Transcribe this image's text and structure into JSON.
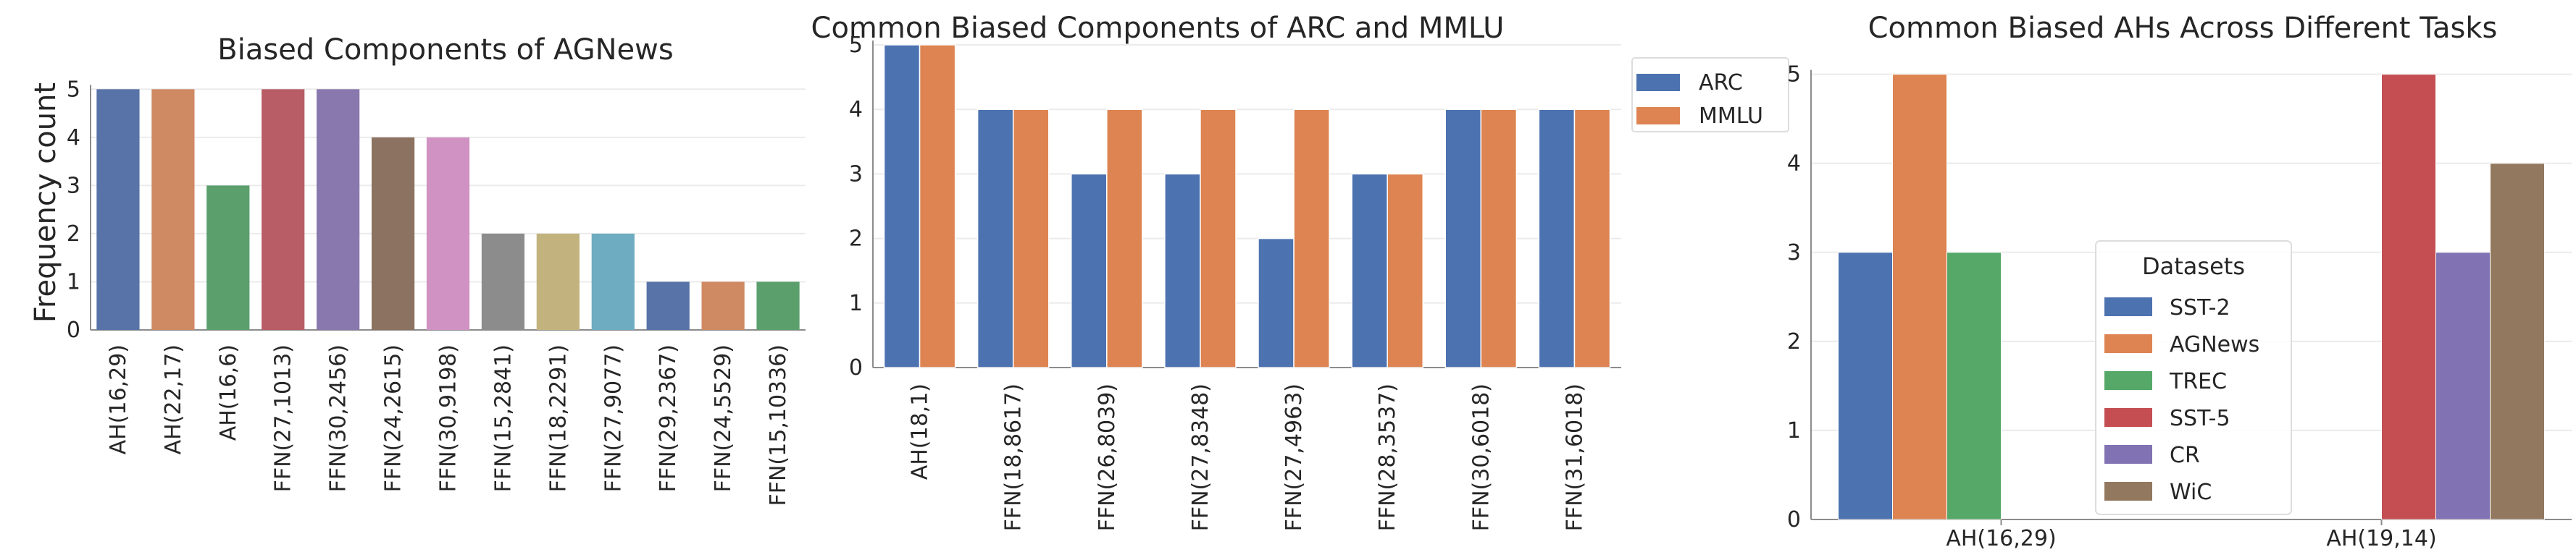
{
  "chart_data": [
    {
      "type": "bar",
      "title": "Biased Components of AGNews",
      "xlabel": "",
      "ylabel": "Frequency count",
      "ylim": [
        0,
        5.2
      ],
      "yticks": [
        0,
        1,
        2,
        3,
        4,
        5
      ],
      "categories": [
        "AH(16,29)",
        "AH(22,17)",
        "AH(16,6)",
        "FFN(27,1013)",
        "FFN(30,2456)",
        "FFN(24,2615)",
        "FFN(30,9198)",
        "FFN(15,2841)",
        "FFN(18,2291)",
        "FFN(27,9077)",
        "FFN(29,2367)",
        "FFN(24,5529)",
        "FFN(15,10336)"
      ],
      "values": [
        5,
        5,
        3,
        5,
        5,
        4,
        4,
        2,
        2,
        2,
        1,
        1,
        1
      ],
      "colors": [
        "#5873a8",
        "#cf8963",
        "#5b9f6d",
        "#b85c65",
        "#8878ad",
        "#8c7261",
        "#d092c2",
        "#8c8c8c",
        "#c2b37e",
        "#6eacc2",
        "#5873a8",
        "#cf8963",
        "#5b9f6d"
      ],
      "grid": true
    },
    {
      "type": "bar",
      "title": "Common Biased Components of ARC and MMLU",
      "xlabel": "",
      "ylabel": "",
      "ylim": [
        0,
        5
      ],
      "yticks": [
        0,
        1,
        2,
        3,
        4,
        5
      ],
      "categories": [
        "AH(18,1)",
        "FFN(18,8617)",
        "FFN(26,8039)",
        "FFN(27,8348)",
        "FFN(27,4963)",
        "FFN(28,3537)",
        "FFN(30,6018)",
        "FFN(31,6018)"
      ],
      "series": [
        {
          "name": "ARC",
          "values": [
            5,
            4,
            3,
            3,
            2,
            3,
            4,
            4
          ],
          "color": "#4c72b0"
        },
        {
          "name": "MMLU",
          "values": [
            5,
            4,
            4,
            4,
            4,
            3,
            4,
            4
          ],
          "color": "#dd8452"
        }
      ],
      "legend": "outside-top-right",
      "grid": true
    },
    {
      "type": "bar",
      "title": "Common Biased AHs Across Different Tasks",
      "xlabel": "",
      "ylabel": "",
      "ylim": [
        0,
        5.2
      ],
      "yticks": [
        0,
        1,
        2,
        3,
        4,
        5
      ],
      "categories": [
        "AH(16,29)",
        "AH(19,14)"
      ],
      "legend_title": "Datasets",
      "legend": "center",
      "series": [
        {
          "name": "SST-2",
          "values": [
            3,
            null
          ],
          "color": "#4c72b0"
        },
        {
          "name": "AGNews",
          "values": [
            5,
            null
          ],
          "color": "#dd8452"
        },
        {
          "name": "TREC",
          "values": [
            3,
            null
          ],
          "color": "#55a868"
        },
        {
          "name": "SST-5",
          "values": [
            null,
            5
          ],
          "color": "#c44e52"
        },
        {
          "name": "CR",
          "values": [
            null,
            3
          ],
          "color": "#8172b3"
        },
        {
          "name": "WiC",
          "values": [
            null,
            4
          ],
          "color": "#937860"
        }
      ],
      "grid": true
    }
  ]
}
